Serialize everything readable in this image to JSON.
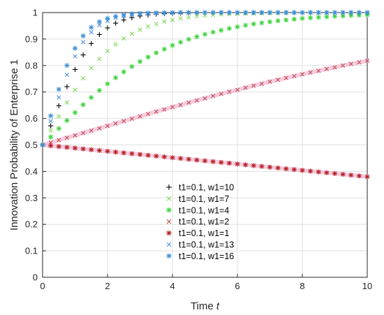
{
  "chart_data": {
    "type": "scatter",
    "title": "",
    "xlabel": "Time ",
    "xlabel_var": "t",
    "ylabel": "Innovation Probability of Enterprise 1",
    "xlim": [
      0,
      10
    ],
    "ylim": [
      0,
      1
    ],
    "xticks": [
      "0",
      "2",
      "4",
      "6",
      "8",
      "10"
    ],
    "yticks": [
      "0",
      "0.1",
      "0.2",
      "0.3",
      "0.4",
      "0.5",
      "0.6",
      "0.7",
      "0.8",
      "0.9",
      "1"
    ],
    "grid": true,
    "legend_position": "bottom-center",
    "x": [
      0,
      0.25,
      0.5,
      0.75,
      1,
      1.25,
      1.5,
      1.75,
      2,
      2.25,
      2.5,
      2.75,
      3,
      3.25,
      3.5,
      3.75,
      4,
      4.25,
      4.5,
      4.75,
      5,
      5.25,
      5.5,
      5.75,
      6,
      6.25,
      6.5,
      6.75,
      7,
      7.25,
      7.5,
      7.75,
      8,
      8.25,
      8.5,
      8.75,
      9,
      9.25,
      9.5,
      9.75,
      10
    ],
    "series": [
      {
        "name": "t1=0.1, w1=10",
        "marker": "plus",
        "color": "#000000",
        "y": [
          0.5,
          0.572,
          0.648,
          0.72,
          0.785,
          0.84,
          0.883,
          0.917,
          0.942,
          0.96,
          0.972,
          0.981,
          0.987,
          0.991,
          0.994,
          0.996,
          0.997,
          0.998,
          0.999,
          0.999,
          1,
          1,
          1,
          1,
          1,
          1,
          1,
          1,
          1,
          1,
          1,
          1,
          1,
          1,
          1,
          1,
          1,
          1,
          1,
          1,
          1
        ]
      },
      {
        "name": "t1=0.1, w1=7",
        "marker": "x",
        "color": "#7ed957",
        "y": [
          0.5,
          0.555,
          0.608,
          0.66,
          0.708,
          0.752,
          0.79,
          0.825,
          0.855,
          0.88,
          0.902,
          0.92,
          0.935,
          0.947,
          0.957,
          0.966,
          0.972,
          0.978,
          0.982,
          0.986,
          0.989,
          0.991,
          0.993,
          0.994,
          0.995,
          0.996,
          0.997,
          0.998,
          0.998,
          0.999,
          0.999,
          0.999,
          1,
          1,
          1,
          1,
          1,
          1,
          1,
          1,
          1
        ]
      },
      {
        "name": "t1=0.1, w1=4",
        "marker": "star",
        "color": "#3ad03a",
        "y": [
          0.5,
          0.53,
          0.562,
          0.592,
          0.622,
          0.652,
          0.679,
          0.706,
          0.731,
          0.754,
          0.776,
          0.796,
          0.815,
          0.832,
          0.848,
          0.862,
          0.876,
          0.888,
          0.899,
          0.909,
          0.918,
          0.926,
          0.933,
          0.94,
          0.946,
          0.952,
          0.957,
          0.961,
          0.965,
          0.969,
          0.972,
          0.975,
          0.978,
          0.98,
          0.982,
          0.984,
          0.986,
          0.987,
          0.989,
          0.99,
          0.991
        ]
      },
      {
        "name": "t1=0.1, w1=2",
        "marker": "x",
        "color": "#c0504d",
        "y": [
          0.5,
          0.509,
          0.518,
          0.527,
          0.536,
          0.545,
          0.554,
          0.563,
          0.572,
          0.581,
          0.59,
          0.599,
          0.608,
          0.617,
          0.626,
          0.634,
          0.643,
          0.651,
          0.66,
          0.668,
          0.676,
          0.685,
          0.693,
          0.701,
          0.708,
          0.716,
          0.724,
          0.731,
          0.739,
          0.746,
          0.753,
          0.76,
          0.767,
          0.774,
          0.78,
          0.787,
          0.793,
          0.8,
          0.806,
          0.812,
          0.818
        ]
      },
      {
        "name": "t1=0.1, w1=1",
        "marker": "star",
        "color": "#b22222",
        "y": [
          0.5,
          0.497,
          0.494,
          0.491,
          0.488,
          0.485,
          0.482,
          0.479,
          0.476,
          0.473,
          0.47,
          0.467,
          0.464,
          0.461,
          0.458,
          0.455,
          0.452,
          0.449,
          0.446,
          0.443,
          0.44,
          0.437,
          0.434,
          0.431,
          0.428,
          0.425,
          0.422,
          0.419,
          0.416,
          0.413,
          0.41,
          0.407,
          0.404,
          0.401,
          0.398,
          0.395,
          0.392,
          0.389,
          0.386,
          0.383,
          0.38
        ]
      },
      {
        "name": "t1=0.1, w1=13",
        "marker": "x",
        "color": "#4a90e2",
        "y": [
          0.5,
          0.59,
          0.68,
          0.765,
          0.835,
          0.888,
          0.926,
          0.952,
          0.969,
          0.98,
          0.987,
          0.992,
          0.995,
          0.997,
          0.998,
          0.999,
          0.999,
          1,
          1,
          1,
          1,
          1,
          1,
          1,
          1,
          1,
          1,
          1,
          1,
          1,
          1,
          1,
          1,
          1,
          1,
          1,
          1,
          1,
          1,
          1,
          1
        ]
      },
      {
        "name": "t1=0.1, w1=16",
        "marker": "star",
        "color": "#3b8fd9",
        "y": [
          0.5,
          0.61,
          0.71,
          0.8,
          0.865,
          0.912,
          0.944,
          0.965,
          0.978,
          0.986,
          0.991,
          0.995,
          0.997,
          0.998,
          0.999,
          0.999,
          1,
          1,
          1,
          1,
          1,
          1,
          1,
          1,
          1,
          1,
          1,
          1,
          1,
          1,
          1,
          1,
          1,
          1,
          1,
          1,
          1,
          1,
          1,
          1,
          1
        ]
      }
    ]
  }
}
